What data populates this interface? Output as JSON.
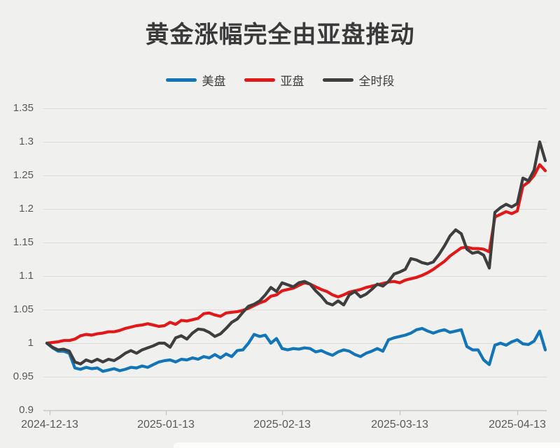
{
  "title": "黄金涨幅完全由亚盘推动",
  "legend": {
    "items": [
      {
        "label": "美盘",
        "color": "#1175b8"
      },
      {
        "label": "亚盘",
        "color": "#e21717"
      },
      {
        "label": "全时段",
        "color": "#3e3e3e"
      }
    ]
  },
  "colors": {
    "background": "#f0f0ef",
    "title_text": "#3a3a3a",
    "axis_text": "#595959",
    "gridline": "#dbdbda",
    "axis_line": "#c6c6c6",
    "series_us": "#1175b8",
    "series_asia": "#e21717",
    "series_full": "#3e3e3e"
  },
  "chart_data": {
    "type": "line",
    "title": "黄金涨幅完全由亚盘推动",
    "xlabel": "",
    "ylabel": "",
    "grid": "horizontal",
    "legend_position": "top",
    "x_axis": {
      "tick_labels": [
        "2024-12-13",
        "2025-01-13",
        "2025-02-13",
        "2025-03-13",
        "2025-04-13"
      ],
      "tick_idx": [
        0.5,
        21.25,
        42,
        63,
        84
      ]
    },
    "y_axis": {
      "range": [
        0.9,
        1.35
      ],
      "ticks": [
        1.35,
        1.3,
        1.25,
        1.2,
        1.15,
        1.1,
        1.05,
        1.0,
        0.95,
        0.9
      ],
      "tick_labels": [
        "1.35",
        "1.3",
        "1.25",
        "1.2",
        "1.15",
        "1.1",
        "1.05",
        "1",
        "0.95",
        "0.9"
      ]
    },
    "series": [
      {
        "name": "美盘",
        "color": "#1175b8",
        "values": [
          1.0,
          0.993,
          0.988,
          0.988,
          0.985,
          0.963,
          0.961,
          0.964,
          0.962,
          0.963,
          0.958,
          0.96,
          0.962,
          0.959,
          0.961,
          0.964,
          0.963,
          0.966,
          0.964,
          0.968,
          0.972,
          0.974,
          0.975,
          0.972,
          0.976,
          0.975,
          0.978,
          0.976,
          0.98,
          0.978,
          0.983,
          0.978,
          0.984,
          0.98,
          0.989,
          0.99,
          1.0,
          1.013,
          1.01,
          1.012,
          1.0,
          1.007,
          0.992,
          0.99,
          0.992,
          0.991,
          0.993,
          0.992,
          0.987,
          0.989,
          0.985,
          0.982,
          0.987,
          0.99,
          0.988,
          0.983,
          0.98,
          0.985,
          0.988,
          0.992,
          0.988,
          1.005,
          1.008,
          1.01,
          1.012,
          1.015,
          1.02,
          1.022,
          1.018,
          1.015,
          1.018,
          1.02,
          1.016,
          1.018,
          1.02,
          0.995,
          0.99,
          0.99,
          0.975,
          0.968,
          0.997,
          1.0,
          0.997,
          1.002,
          1.005,
          0.999,
          0.998,
          1.003,
          1.018,
          0.99
        ]
      },
      {
        "name": "亚盘",
        "color": "#e21717",
        "values": [
          1.0,
          1.001,
          1.002,
          1.004,
          1.004,
          1.006,
          1.011,
          1.013,
          1.012,
          1.014,
          1.015,
          1.017,
          1.017,
          1.019,
          1.022,
          1.024,
          1.026,
          1.027,
          1.029,
          1.027,
          1.025,
          1.026,
          1.031,
          1.028,
          1.034,
          1.033,
          1.035,
          1.037,
          1.044,
          1.045,
          1.042,
          1.04,
          1.045,
          1.046,
          1.047,
          1.049,
          1.052,
          1.056,
          1.06,
          1.063,
          1.07,
          1.072,
          1.078,
          1.08,
          1.082,
          1.086,
          1.09,
          1.088,
          1.084,
          1.08,
          1.077,
          1.072,
          1.069,
          1.072,
          1.076,
          1.078,
          1.08,
          1.083,
          1.085,
          1.087,
          1.089,
          1.091,
          1.092,
          1.09,
          1.094,
          1.096,
          1.098,
          1.101,
          1.105,
          1.11,
          1.116,
          1.122,
          1.13,
          1.136,
          1.142,
          1.143,
          1.141,
          1.141,
          1.14,
          1.136,
          1.188,
          1.192,
          1.196,
          1.193,
          1.197,
          1.234,
          1.24,
          1.25,
          1.266,
          1.257
        ]
      },
      {
        "name": "全时段",
        "color": "#3e3e3e",
        "values": [
          1.0,
          0.994,
          0.99,
          0.991,
          0.988,
          0.972,
          0.969,
          0.975,
          0.972,
          0.976,
          0.972,
          0.976,
          0.974,
          0.979,
          0.985,
          0.989,
          0.985,
          0.99,
          0.993,
          0.996,
          1.0,
          1.0,
          0.994,
          1.008,
          1.011,
          1.006,
          1.015,
          1.021,
          1.02,
          1.016,
          1.01,
          1.014,
          1.022,
          1.031,
          1.036,
          1.046,
          1.055,
          1.058,
          1.063,
          1.072,
          1.083,
          1.077,
          1.09,
          1.087,
          1.084,
          1.09,
          1.092,
          1.088,
          1.078,
          1.07,
          1.06,
          1.057,
          1.063,
          1.057,
          1.072,
          1.077,
          1.069,
          1.073,
          1.08,
          1.088,
          1.085,
          1.092,
          1.103,
          1.106,
          1.11,
          1.126,
          1.124,
          1.12,
          1.118,
          1.121,
          1.132,
          1.145,
          1.16,
          1.169,
          1.163,
          1.14,
          1.134,
          1.136,
          1.131,
          1.112,
          1.195,
          1.202,
          1.207,
          1.203,
          1.208,
          1.246,
          1.242,
          1.258,
          1.3,
          1.272
        ]
      }
    ]
  }
}
